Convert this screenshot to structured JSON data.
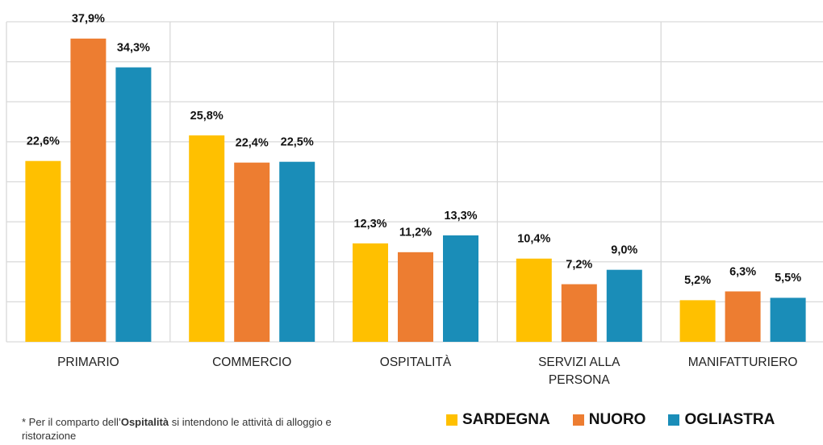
{
  "chart_data": {
    "type": "bar",
    "categories": [
      "PRIMARIO",
      "COMMERCIO",
      "OSPITALITÀ",
      "SERVIZI ALLA PERSONA",
      "MANIFATTURIERO"
    ],
    "series": [
      {
        "name": "SARDEGNA",
        "color": "#FFC000",
        "values": [
          22.6,
          25.8,
          12.3,
          10.4,
          5.2
        ],
        "value_labels": [
          "22,6%",
          "25,8%",
          "12,3%",
          "10,4%",
          "5,2%"
        ]
      },
      {
        "name": "NUORO",
        "color": "#ED7D31",
        "values": [
          37.9,
          22.4,
          11.2,
          7.2,
          6.3
        ],
        "value_labels": [
          "37,9%",
          "22,4%",
          "11,2%",
          "7,2%",
          "6,3%"
        ]
      },
      {
        "name": "OGLIASTRA",
        "color": "#1A8DB8",
        "values": [
          34.3,
          22.5,
          13.3,
          9.0,
          5.5
        ],
        "value_labels": [
          "34,3%",
          "22,5%",
          "13,3%",
          "9,0%",
          "5,5%"
        ]
      }
    ],
    "ylim": [
      0,
      40
    ],
    "yticks": [
      0,
      5,
      10,
      15,
      20,
      25,
      30,
      35,
      40
    ],
    "grid": true,
    "footnote": [
      "* Per il comparto dell’",
      "Ospitalità",
      " si intendono le attività di alloggio e ristorazione"
    ]
  }
}
